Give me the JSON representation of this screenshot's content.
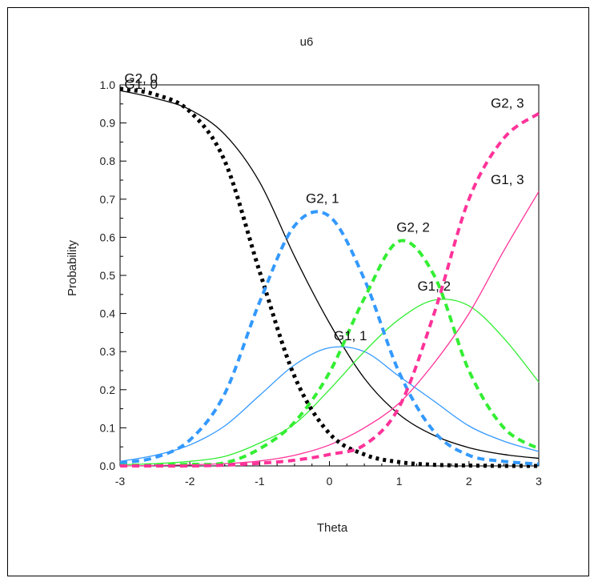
{
  "chart_data": {
    "type": "line",
    "title": "u6",
    "xlabel": "Theta",
    "ylabel": "Probability",
    "xlim": [
      -3,
      3
    ],
    "ylim": [
      0,
      1
    ],
    "x_ticks": [
      "-3",
      "-2",
      "-1",
      "0",
      "1",
      "2",
      "3"
    ],
    "y_ticks": [
      "0.0",
      "0.1",
      "0.2",
      "0.3",
      "0.4",
      "0.5",
      "0.6",
      "0.7",
      "0.8",
      "0.9",
      "1.0"
    ],
    "grid": false,
    "x": [
      -3,
      -2.5,
      -2,
      -1.5,
      -1,
      -0.5,
      0,
      0.5,
      1,
      1.5,
      2,
      2.5,
      3
    ],
    "series": [
      {
        "name": "G1, 0",
        "color": "#000000",
        "dash": "solid",
        "values": [
          0.985,
          0.965,
          0.935,
          0.87,
          0.745,
          0.55,
          0.375,
          0.23,
          0.135,
          0.08,
          0.048,
          0.03,
          0.02
        ]
      },
      {
        "name": "G1, 1",
        "color": "#3399ff",
        "dash": "solid",
        "values": [
          0.012,
          0.028,
          0.055,
          0.105,
          0.185,
          0.265,
          0.31,
          0.3,
          0.235,
          0.17,
          0.105,
          0.065,
          0.038
        ]
      },
      {
        "name": "G1, 2",
        "color": "#33ee33",
        "dash": "solid",
        "values": [
          0.003,
          0.006,
          0.012,
          0.025,
          0.06,
          0.11,
          0.2,
          0.3,
          0.385,
          0.435,
          0.42,
          0.335,
          0.22
        ]
      },
      {
        "name": "G1, 3",
        "color": "#ff3399",
        "dash": "solid",
        "values": [
          0.0,
          0.001,
          0.003,
          0.006,
          0.013,
          0.028,
          0.055,
          0.1,
          0.165,
          0.27,
          0.4,
          0.565,
          0.72
        ]
      },
      {
        "name": "G2, 0",
        "color": "#000000",
        "dash": "dotted",
        "values": [
          0.99,
          0.975,
          0.93,
          0.8,
          0.51,
          0.235,
          0.085,
          0.03,
          0.01,
          0.003,
          0.001,
          0.0,
          0.0
        ]
      },
      {
        "name": "G2, 1",
        "color": "#3399ff",
        "dash": "dashed",
        "values": [
          0.008,
          0.022,
          0.068,
          0.19,
          0.43,
          0.63,
          0.655,
          0.49,
          0.245,
          0.09,
          0.028,
          0.012,
          0.005
        ]
      },
      {
        "name": "G2, 2",
        "color": "#33ee33",
        "dash": "dashed",
        "values": [
          0.001,
          0.003,
          0.004,
          0.008,
          0.045,
          0.115,
          0.245,
          0.44,
          0.59,
          0.5,
          0.25,
          0.1,
          0.045
        ]
      },
      {
        "name": "G2, 3",
        "color": "#ff3399",
        "dash": "dashed",
        "values": [
          0.0,
          0.0,
          0.0,
          0.002,
          0.007,
          0.015,
          0.03,
          0.055,
          0.155,
          0.4,
          0.7,
          0.86,
          0.925
        ]
      }
    ],
    "curve_labels": [
      {
        "text": "G2, 0",
        "x": -2.7,
        "y": 1.005
      },
      {
        "text": "G1, 0",
        "x": -2.7,
        "y": 0.99
      },
      {
        "text": "G2, 1",
        "x": -0.1,
        "y": 0.69
      },
      {
        "text": "G2, 2",
        "x": 1.2,
        "y": 0.615
      },
      {
        "text": "G1, 2",
        "x": 1.5,
        "y": 0.46
      },
      {
        "text": "G1, 1",
        "x": 0.3,
        "y": 0.33
      },
      {
        "text": "G2, 3",
        "x": 2.55,
        "y": 0.94
      },
      {
        "text": "G1, 3",
        "x": 2.55,
        "y": 0.74
      }
    ]
  }
}
